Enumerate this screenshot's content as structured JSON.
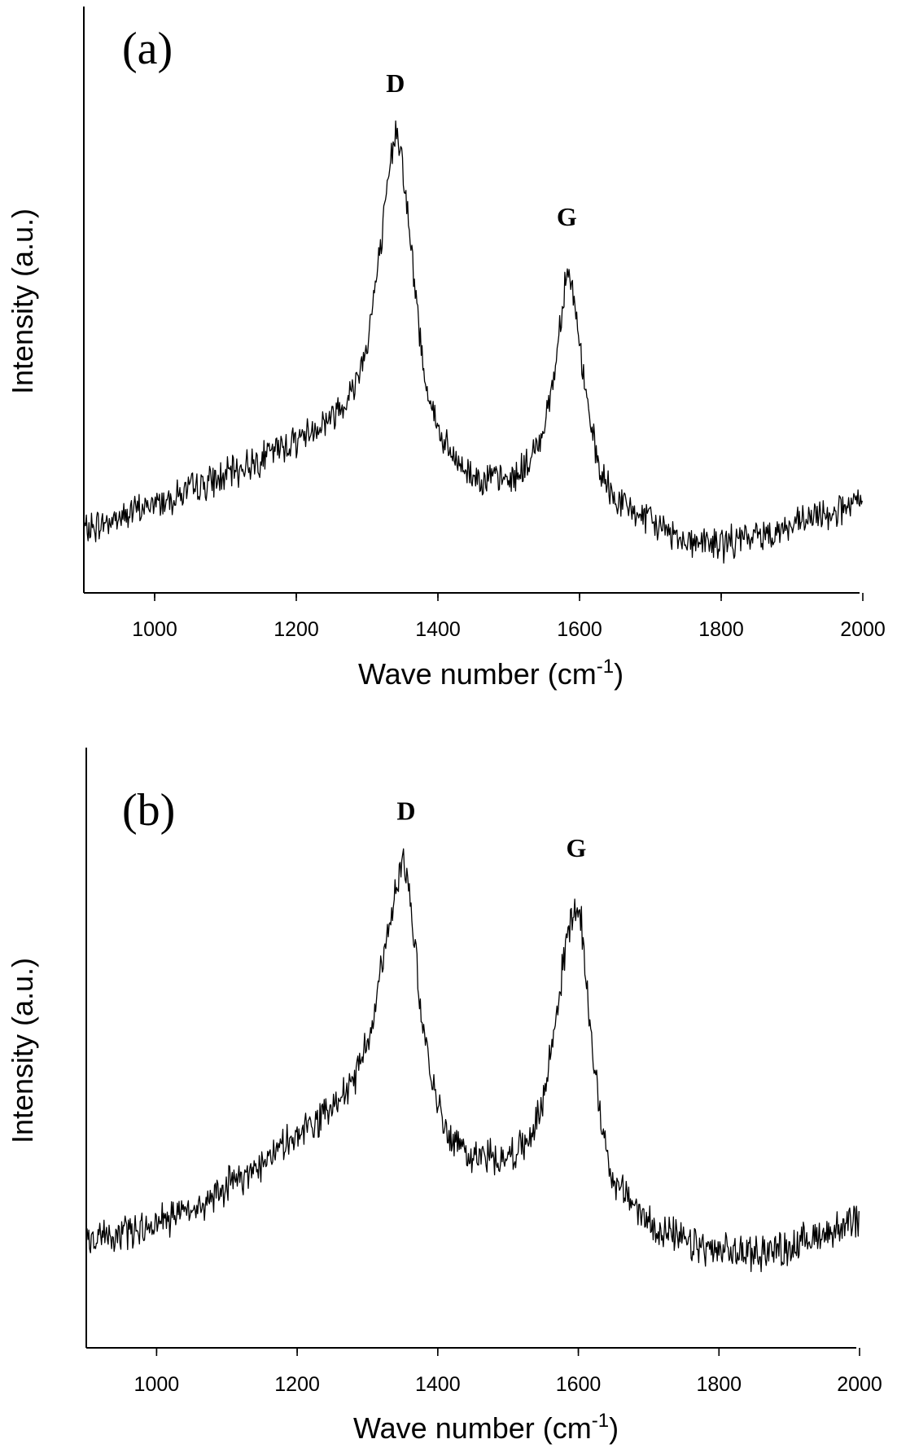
{
  "chart_data": [
    {
      "type": "line",
      "panel_label": "(a)",
      "xlabel": "Wave number (cm",
      "xlabel_sup": "-1",
      "xlabel_end": ")",
      "ylabel": "Intensity (a.u.)",
      "xlim": [
        900,
        2000
      ],
      "xticks": [
        "1000",
        "1200",
        "1400",
        "1600",
        "1800",
        "2000"
      ],
      "xtick_values": [
        1000,
        1200,
        1400,
        1600,
        1800,
        2000
      ],
      "y_ticks_shown": false,
      "annotations": [
        {
          "text": "D",
          "x": 1340
        },
        {
          "text": "G",
          "x": 1582
        }
      ],
      "series": [
        {
          "x": [
            900,
            950,
            1000,
            1050,
            1100,
            1150,
            1200,
            1250,
            1280,
            1300,
            1320,
            1335,
            1342,
            1350,
            1365,
            1380,
            1400,
            1420,
            1450,
            1500,
            1530,
            1550,
            1565,
            1575,
            1582,
            1590,
            1600,
            1615,
            1630,
            1650,
            1700,
            1750,
            1800,
            1850,
            1900,
            1950,
            2000
          ],
          "values": [
            0.05,
            0.08,
            0.11,
            0.14,
            0.17,
            0.21,
            0.25,
            0.3,
            0.36,
            0.46,
            0.68,
            0.88,
            0.94,
            0.86,
            0.62,
            0.4,
            0.27,
            0.21,
            0.17,
            0.16,
            0.2,
            0.28,
            0.4,
            0.54,
            0.63,
            0.58,
            0.46,
            0.28,
            0.17,
            0.12,
            0.07,
            0.03,
            0.02,
            0.04,
            0.06,
            0.09,
            0.11
          ]
        }
      ]
    },
    {
      "type": "line",
      "panel_label": "(b)",
      "xlabel": "Wave number (cm",
      "xlabel_sup": "-1",
      "xlabel_end": ")",
      "ylabel": "Intensity (a.u.)",
      "xlim": [
        900,
        2000
      ],
      "xticks": [
        "1000",
        "1200",
        "1400",
        "1600",
        "1800",
        "2000"
      ],
      "xtick_values": [
        1000,
        1200,
        1400,
        1600,
        1800,
        2000
      ],
      "y_ticks_shown": false,
      "annotations": [
        {
          "text": "D",
          "x": 1355
        },
        {
          "text": "G",
          "x": 1597
        }
      ],
      "series": [
        {
          "x": [
            900,
            950,
            1000,
            1050,
            1100,
            1150,
            1200,
            1250,
            1280,
            1300,
            1320,
            1340,
            1352,
            1360,
            1375,
            1390,
            1410,
            1430,
            1460,
            1500,
            1530,
            1550,
            1570,
            1585,
            1597,
            1605,
            1615,
            1630,
            1650,
            1700,
            1750,
            1800,
            1850,
            1900,
            1950,
            2000
          ],
          "values": [
            0.12,
            0.14,
            0.16,
            0.18,
            0.23,
            0.28,
            0.33,
            0.38,
            0.44,
            0.52,
            0.66,
            0.82,
            0.89,
            0.82,
            0.6,
            0.44,
            0.35,
            0.31,
            0.29,
            0.29,
            0.32,
            0.4,
            0.58,
            0.74,
            0.79,
            0.74,
            0.58,
            0.38,
            0.24,
            0.16,
            0.12,
            0.1,
            0.1,
            0.11,
            0.14,
            0.16
          ]
        }
      ]
    }
  ]
}
